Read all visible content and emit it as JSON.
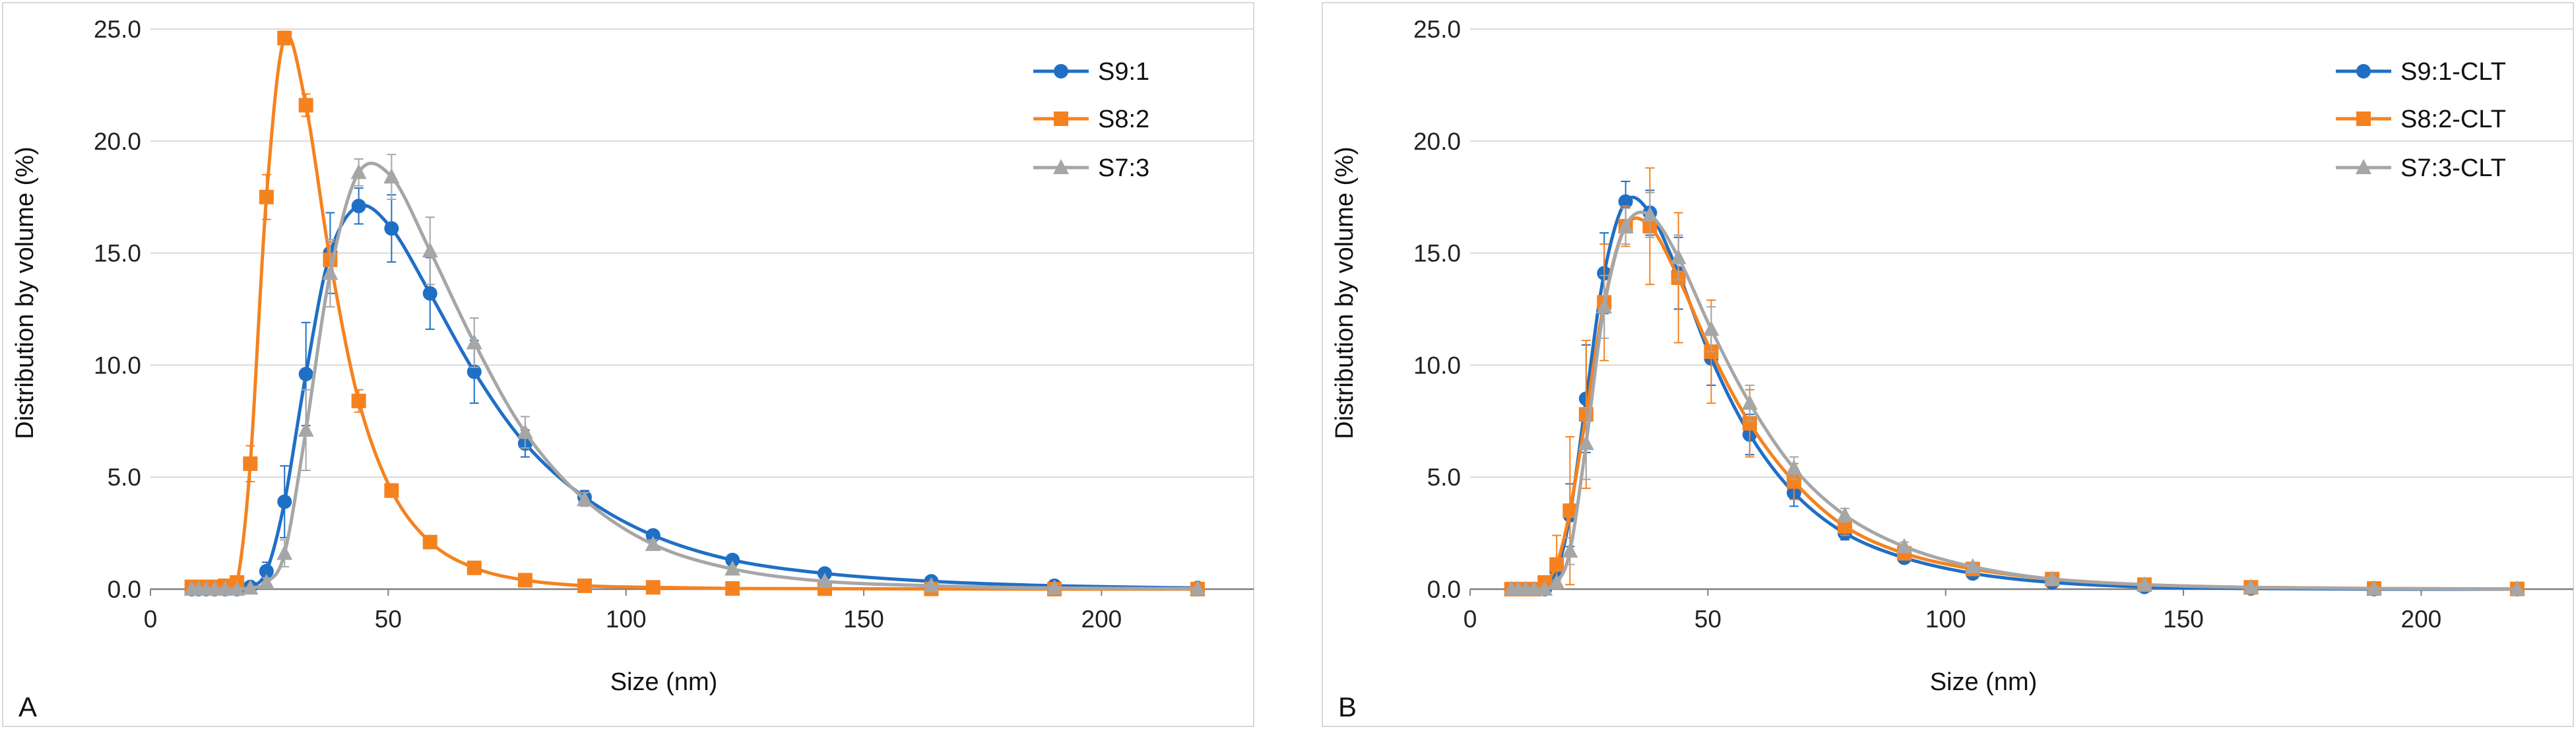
{
  "chart_data": [
    {
      "type": "line",
      "panel_label": "A",
      "xlabel": "Size (nm)",
      "ylabel": "Distribution by volume (%)",
      "xlim": [
        0,
        232
      ],
      "ylim": [
        0,
        25
      ],
      "xticks": [
        "0",
        "50",
        "100",
        "150",
        "200"
      ],
      "yticks": [
        "0.0",
        "5.0",
        "10.0",
        "15.0",
        "20.0",
        "25.0"
      ],
      "grid": "horizontal",
      "legend_position": "top-right",
      "series": [
        {
          "name": "S9:1",
          "color": "#1f6fc5",
          "marker": "circle",
          "x": [
            8.7,
            10.1,
            11.7,
            13.5,
            15.7,
            18.2,
            21.0,
            24.4,
            28.2,
            32.7,
            37.8,
            43.8,
            50.7,
            58.8,
            68.1,
            78.8,
            91.3,
            105.7,
            122.4,
            141.8,
            164.2,
            190.1,
            220.2
          ],
          "y": [
            0,
            0,
            0,
            0,
            0,
            0,
            0.1,
            0.8,
            3.9,
            9.6,
            15.0,
            17.1,
            16.1,
            13.2,
            9.7,
            6.5,
            4.1,
            2.4,
            1.3,
            0.7,
            0.35,
            0.15,
            0.05
          ],
          "err": [
            0,
            0,
            0,
            0,
            0,
            0,
            0.05,
            0.4,
            1.6,
            2.3,
            1.8,
            0.8,
            1.5,
            1.6,
            1.4,
            0.6,
            0.3,
            0.2,
            0.1,
            0,
            0,
            0,
            0
          ]
        },
        {
          "name": "S8:2",
          "color": "#f5821f",
          "marker": "square",
          "x": [
            8.7,
            10.1,
            11.7,
            13.5,
            15.7,
            18.2,
            21.0,
            24.4,
            28.2,
            32.7,
            37.8,
            43.8,
            50.7,
            58.8,
            68.1,
            78.8,
            91.3,
            105.7,
            122.4,
            141.8,
            164.2,
            190.1,
            220.2
          ],
          "y": [
            0.1,
            0.1,
            0.1,
            0.1,
            0.15,
            0.3,
            5.6,
            17.5,
            24.6,
            21.6,
            14.7,
            8.4,
            4.4,
            2.1,
            0.95,
            0.4,
            0.15,
            0.08,
            0.03,
            0.02,
            0.01,
            0,
            0
          ],
          "err": [
            0,
            0,
            0,
            0,
            0,
            0.1,
            0.8,
            1.0,
            0.3,
            0.5,
            0.8,
            0.5,
            0.3,
            0.2,
            0.1,
            0,
            0,
            0,
            0,
            0,
            0,
            0,
            0
          ]
        },
        {
          "name": "S7:3",
          "color": "#a6a6a6",
          "marker": "triangle",
          "x": [
            8.7,
            10.1,
            11.7,
            13.5,
            15.7,
            18.2,
            21.0,
            24.4,
            28.2,
            32.7,
            37.8,
            43.8,
            50.7,
            58.8,
            68.1,
            78.8,
            91.3,
            105.7,
            122.4,
            141.8,
            164.2,
            190.1,
            220.2
          ],
          "y": [
            0,
            0,
            0,
            0,
            0,
            0,
            0.05,
            0.3,
            1.6,
            7.1,
            14.1,
            18.6,
            18.4,
            15.1,
            11.0,
            7.0,
            4.0,
            2.0,
            0.9,
            0.35,
            0.15,
            0.05,
            0.02
          ],
          "err": [
            0,
            0,
            0,
            0,
            0,
            0,
            0,
            0.2,
            0.6,
            1.8,
            1.5,
            0.6,
            1.0,
            1.5,
            1.1,
            0.7,
            0.3,
            0.2,
            0.1,
            0,
            0,
            0,
            0
          ]
        }
      ]
    },
    {
      "type": "line",
      "panel_label": "B",
      "xlabel": "Size (nm)",
      "ylabel": "Distribution by volume (%)",
      "xlim": [
        0,
        232
      ],
      "ylim": [
        0,
        25
      ],
      "xticks": [
        "0",
        "50",
        "100",
        "150",
        "200"
      ],
      "yticks": [
        "0.0",
        "5.0",
        "10.0",
        "15.0",
        "20.0",
        "25.0"
      ],
      "grid": "horizontal",
      "legend_position": "top-right",
      "series": [
        {
          "name": "S9:1-CLT",
          "color": "#1f6fc5",
          "marker": "circle",
          "x": [
            8.7,
            10.1,
            11.7,
            13.5,
            15.7,
            18.2,
            21.0,
            24.4,
            28.2,
            32.7,
            37.8,
            43.8,
            50.7,
            58.8,
            68.1,
            78.8,
            91.3,
            105.7,
            122.4,
            141.8,
            164.2,
            190.1,
            220.2
          ],
          "y": [
            0,
            0,
            0,
            0,
            0,
            0.8,
            3.3,
            8.5,
            14.1,
            17.3,
            16.8,
            14.1,
            10.3,
            6.9,
            4.3,
            2.5,
            1.4,
            0.7,
            0.3,
            0.1,
            0.03,
            0,
            0
          ],
          "err": [
            0,
            0,
            0,
            0,
            0,
            0.3,
            1.4,
            2.4,
            1.8,
            0.9,
            1.0,
            1.6,
            1.2,
            0.9,
            0.6,
            0.3,
            0.2,
            0.1,
            0,
            0,
            0,
            0,
            0
          ]
        },
        {
          "name": "S8:2-CLT",
          "color": "#f5821f",
          "marker": "square",
          "x": [
            8.7,
            10.1,
            11.7,
            13.5,
            15.7,
            18.2,
            21.0,
            24.4,
            28.2,
            32.7,
            37.8,
            43.8,
            50.7,
            58.8,
            68.1,
            78.8,
            91.3,
            105.7,
            122.4,
            141.8,
            164.2,
            190.1,
            220.2
          ],
          "y": [
            0,
            0,
            0,
            0,
            0.3,
            1.1,
            3.5,
            7.8,
            12.8,
            16.2,
            16.2,
            13.9,
            10.6,
            7.4,
            4.8,
            2.8,
            1.6,
            0.9,
            0.45,
            0.2,
            0.08,
            0.03,
            0.01
          ],
          "err": [
            0,
            0,
            0,
            0,
            0.2,
            1.3,
            3.3,
            3.3,
            2.6,
            0.9,
            2.6,
            2.9,
            2.3,
            1.5,
            0.8,
            0.4,
            0.2,
            0.1,
            0.05,
            0,
            0,
            0,
            0
          ]
        },
        {
          "name": "S7:3-CLT",
          "color": "#a6a6a6",
          "marker": "triangle",
          "x": [
            8.7,
            10.1,
            11.7,
            13.5,
            15.7,
            18.2,
            21.0,
            24.4,
            28.2,
            32.7,
            37.8,
            43.8,
            50.7,
            58.8,
            68.1,
            78.8,
            91.3,
            105.7,
            122.4,
            141.8,
            164.2,
            190.1,
            220.2
          ],
          "y": [
            0,
            0,
            0,
            0,
            0,
            0.3,
            1.7,
            6.5,
            12.6,
            16.2,
            16.7,
            14.8,
            11.6,
            8.3,
            5.4,
            3.3,
            1.9,
            1.0,
            0.45,
            0.2,
            0.08,
            0.03,
            0.01
          ],
          "err": [
            0,
            0,
            0,
            0,
            0,
            0.1,
            0.6,
            1.6,
            1.4,
            0.8,
            1.0,
            1.0,
            1.0,
            0.8,
            0.5,
            0.3,
            0.2,
            0.1,
            0,
            0,
            0,
            0,
            0
          ]
        }
      ]
    }
  ]
}
